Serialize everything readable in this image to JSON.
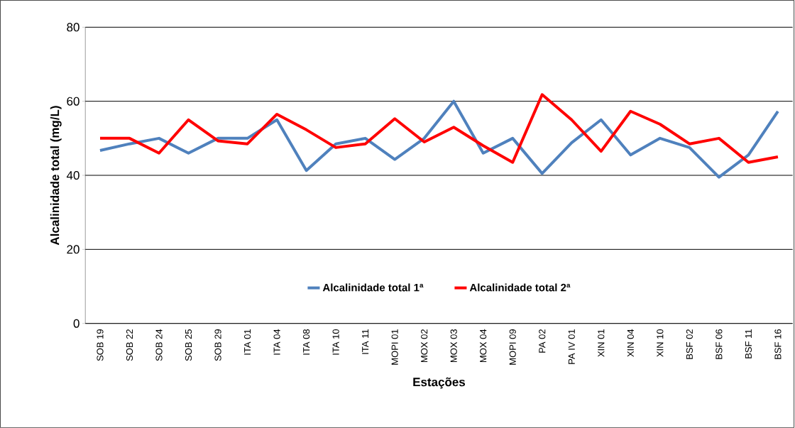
{
  "chart_data": {
    "type": "line",
    "xlabel": "Estações",
    "ylabel": "Alcalinidade  total (mg/L)",
    "categories": [
      "SOB 19",
      "SOB 22",
      "SOB 24",
      "SOB 25",
      "SOB 29",
      "ITA 01",
      "ITA 04",
      "ITA 08",
      "ITA 10",
      "ITA 11",
      "MOPI 01",
      "MOX 02",
      "MOX 03",
      "MOX 04",
      "MOPI 09",
      "PA 02",
      "PA IV 01",
      "XIN 01",
      "XIN 04",
      "XIN 10",
      "BSF 02",
      "BSF 06",
      "BSF 11",
      "BSF 16"
    ],
    "series": [
      {
        "name": "Alcalinidade total 1ª",
        "color": "#4f81bd",
        "values": [
          46.7,
          48.5,
          50,
          46,
          50,
          50,
          55,
          41.3,
          48.5,
          50,
          44.3,
          50,
          60,
          46,
          50,
          40.5,
          48.8,
          55,
          45.5,
          50,
          47.5,
          39.5,
          45.5,
          57.3
        ]
      },
      {
        "name": "Alcalinidade total 2ª",
        "color": "#ff0000",
        "values": [
          50,
          50,
          46,
          55,
          49.3,
          48.5,
          56.5,
          52.3,
          47.5,
          48.5,
          55.3,
          49,
          53,
          48,
          43.5,
          61.8,
          55,
          46.5,
          57.3,
          53.8,
          48.5,
          50,
          43.5,
          45
        ]
      }
    ],
    "ylim": [
      0,
      80
    ],
    "yticks": [
      0,
      20,
      40,
      60,
      80
    ],
    "grid": "y",
    "legend": "bottom",
    "marker": "none",
    "line_style": "solid"
  }
}
